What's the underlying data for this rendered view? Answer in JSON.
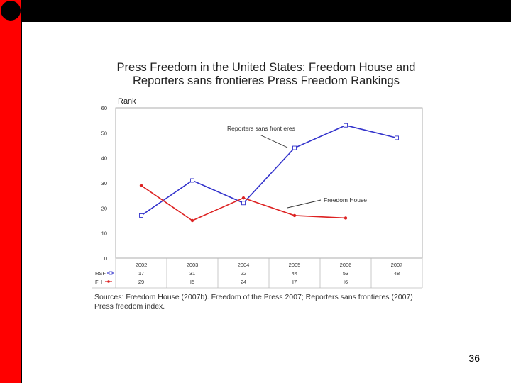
{
  "slide_number": "36",
  "sources_text": "Sources: Freedom House (2007b). Freedom of the Press 2007; Reporters sans frontieres (2007) Press freedom index.",
  "colors": {
    "top_bar": "#000000",
    "left_bar": "#ff0000",
    "rsf": "#3333cc",
    "fh": "#dd2222"
  },
  "chart_data": {
    "type": "line",
    "title_line1": "Press Freedom in the United States: Freedom House and",
    "title_line2": "Reporters sans frontieres Press Freedom Rankings",
    "ylabel": "Rank",
    "xlabel": "",
    "ylim": [
      0,
      60
    ],
    "yticks": [
      0,
      10,
      20,
      30,
      40,
      50,
      60
    ],
    "categories": [
      "2002",
      "2003",
      "2004",
      "2005",
      "2006",
      "2007"
    ],
    "series": [
      {
        "name": "Reporters sans frontieres",
        "short": "RSF",
        "marker": "square",
        "values": [
          17,
          31,
          22,
          44,
          53,
          48
        ]
      },
      {
        "name": "Freedom House",
        "short": "FH",
        "marker": "circle",
        "values": [
          29,
          15,
          24,
          17,
          16,
          null
        ]
      }
    ],
    "annotations": [
      {
        "text": "Reporters sans front eres",
        "series": "RSF"
      },
      {
        "text": "Freedom House",
        "series": "FH"
      }
    ],
    "table_display": [
      [
        "17",
        "31",
        "22",
        "44",
        "53",
        "48"
      ],
      [
        "29",
        "I5",
        "24",
        "I7",
        "I6",
        ""
      ]
    ]
  }
}
